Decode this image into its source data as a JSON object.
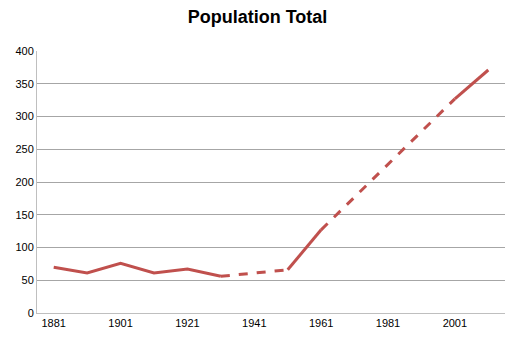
{
  "chart_data": {
    "type": "line",
    "title": "Population Total",
    "x": [
      1881,
      1891,
      1901,
      1911,
      1921,
      1931,
      1951,
      1961,
      2001,
      2011
    ],
    "color": "#c0504d",
    "series": [
      {
        "line_style": "solid",
        "values": [
          70,
          61,
          76,
          61,
          67,
          56,
          null,
          null,
          null,
          null
        ]
      },
      {
        "line_style": "dashed",
        "values": [
          null,
          null,
          null,
          null,
          null,
          56,
          66,
          null,
          null,
          null
        ]
      },
      {
        "line_style": "solid",
        "values": [
          null,
          null,
          null,
          null,
          null,
          null,
          66,
          127,
          null,
          null
        ]
      },
      {
        "line_style": "dashed",
        "values": [
          null,
          null,
          null,
          null,
          null,
          null,
          null,
          127,
          327,
          null
        ]
      },
      {
        "line_style": "solid",
        "values": [
          null,
          null,
          null,
          null,
          null,
          null,
          null,
          null,
          327,
          371
        ]
      }
    ],
    "xlim": [
      1876,
      2016
    ],
    "xticks": [
      1881,
      1901,
      1921,
      1941,
      1961,
      1981,
      2001
    ],
    "ylim": [
      0,
      400
    ],
    "yticks": [
      0,
      50,
      100,
      150,
      200,
      250,
      300,
      350,
      400
    ],
    "grid": true
  }
}
